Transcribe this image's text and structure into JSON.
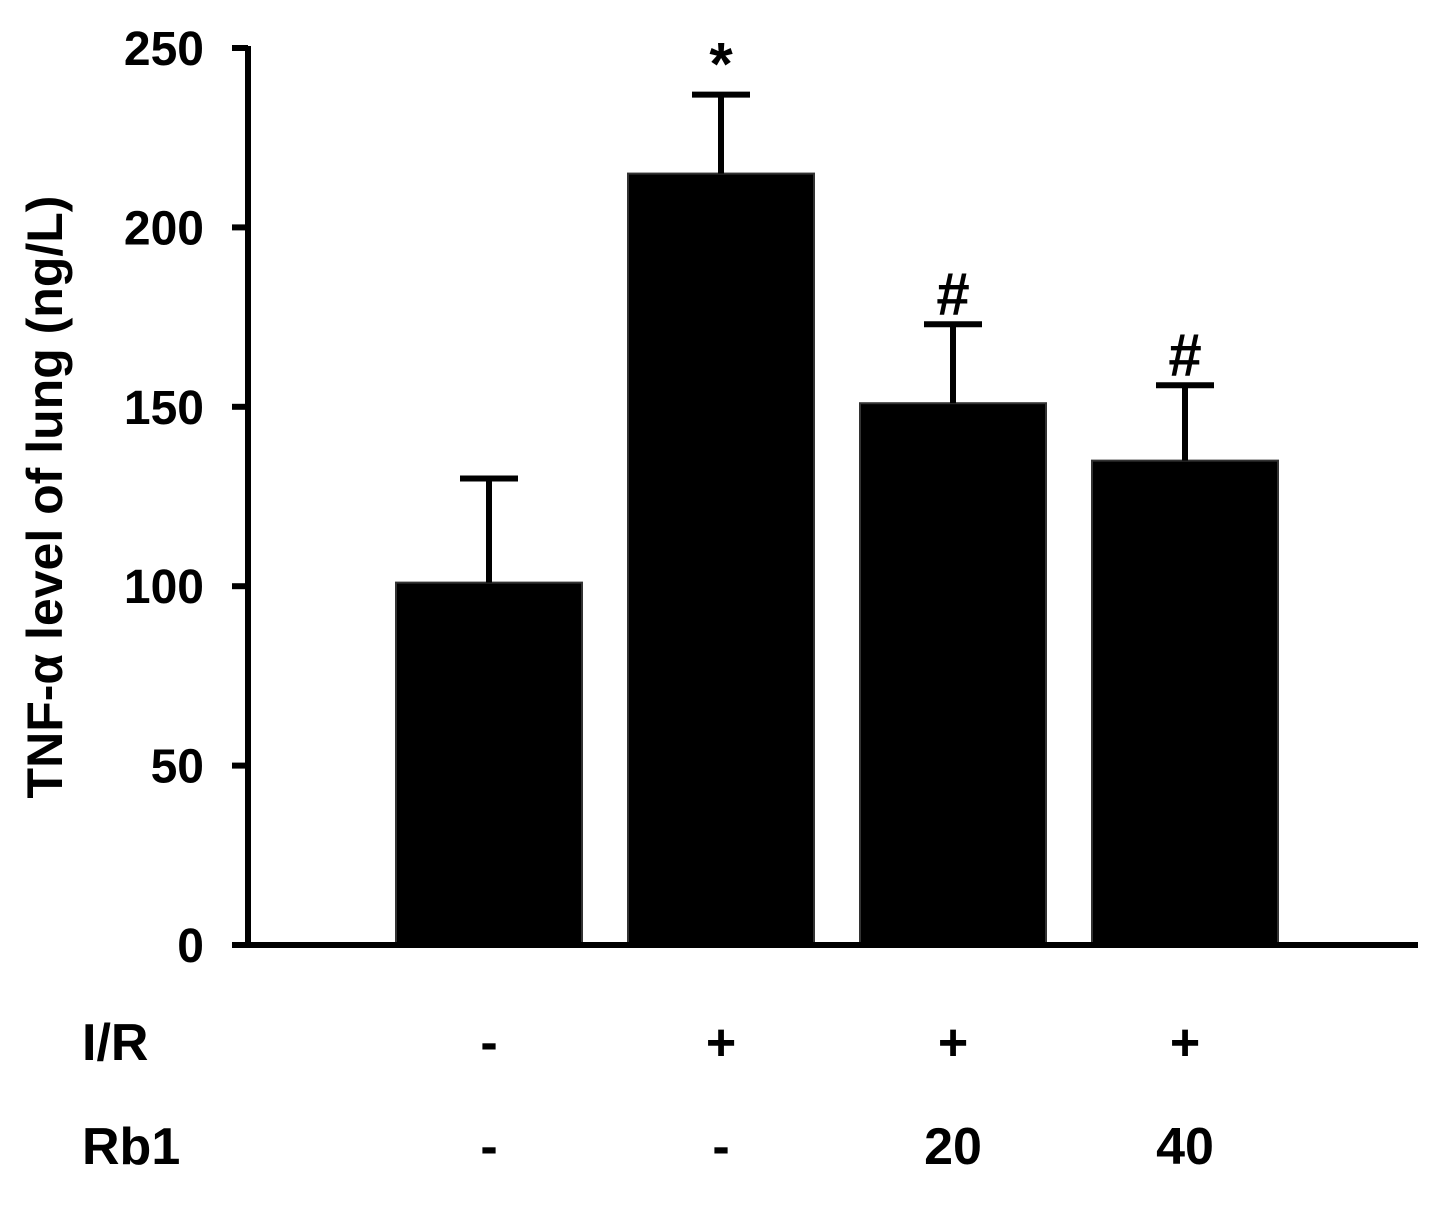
{
  "chart_data": {
    "type": "bar",
    "ylabel": "TNF-α level of lung (ng/L)",
    "ylim": [
      0,
      250
    ],
    "yticks": [
      "0",
      "50",
      "100",
      "150",
      "200",
      "250"
    ],
    "grid": false,
    "series": [
      {
        "values": [
          101,
          215,
          151,
          135
        ],
        "errors": [
          29,
          22,
          22,
          21
        ],
        "significance": [
          "",
          "*",
          "#",
          "#"
        ]
      }
    ],
    "condition_rows": [
      {
        "label": "I/R",
        "values": [
          "-",
          "+",
          "+",
          "+"
        ]
      },
      {
        "label": "Rb1",
        "values": [
          "-",
          "-",
          "20",
          "40"
        ]
      }
    ],
    "bar_color": "#000000"
  }
}
